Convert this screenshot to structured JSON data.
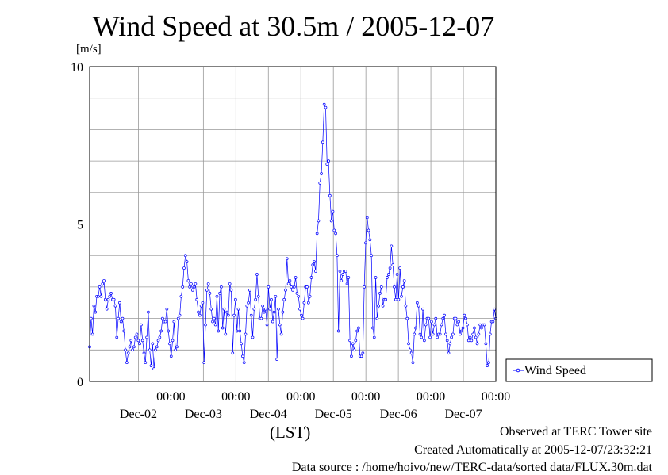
{
  "chart_data": {
    "type": "line",
    "title": "Wind Speed at 30.5m / 2005-12-07",
    "ylabel": "[m/s]",
    "xlabel": "(LST)",
    "ylim": [
      0,
      10
    ],
    "yticks": [
      0,
      5,
      10
    ],
    "grid": true,
    "legend_position": "right",
    "x_ticks": [
      {
        "time": "00:00",
        "date": "Dec-02"
      },
      {
        "time": "00:00",
        "date": "Dec-03"
      },
      {
        "time": "00:00",
        "date": "Dec-04"
      },
      {
        "time": "00:00",
        "date": "Dec-05"
      },
      {
        "time": "00:00",
        "date": "Dec-06"
      },
      {
        "time": "00:00",
        "date": "Dec-07"
      }
    ],
    "x_units": "hours since 2005-12-01 00:00 LST",
    "xlim": [
      18,
      168
    ],
    "series": [
      {
        "name": "Wind Speed",
        "color": "#0000ff",
        "y": [
          1.1,
          2.0,
          1.5,
          2.4,
          2.2,
          2.7,
          2.7,
          3.0,
          2.7,
          3.1,
          3.2,
          2.6,
          2.3,
          2.6,
          2.7,
          2.8,
          2.6,
          2.6,
          2.4,
          1.4,
          2.0,
          2.5,
          1.9,
          2.0,
          1.6,
          1.0,
          0.6,
          0.9,
          1.1,
          1.3,
          1.0,
          1.1,
          1.4,
          1.5,
          1.3,
          1.2,
          1.8,
          1.3,
          0.9,
          0.6,
          1.4,
          2.2,
          1.0,
          0.5,
          1.2,
          0.4,
          1.0,
          1.1,
          1.3,
          1.4,
          1.6,
          2.0,
          1.9,
          1.9,
          2.3,
          1.6,
          1.2,
          0.8,
          1.3,
          1.9,
          1.0,
          1.1,
          2.0,
          2.1,
          2.7,
          3.0,
          3.6,
          4.0,
          3.8,
          3.2,
          3.0,
          3.1,
          2.9,
          3.0,
          3.1,
          2.6,
          2.2,
          2.1,
          2.4,
          2.5,
          0.6,
          1.8,
          2.9,
          3.1,
          2.8,
          2.3,
          1.9,
          2.0,
          1.8,
          2.7,
          1.6,
          2.8,
          3.0,
          1.7,
          2.3,
          1.5,
          2.2,
          2.1,
          3.1,
          2.9,
          0.9,
          2.1,
          2.6,
          1.6,
          2.3,
          1.6,
          1.2,
          0.8,
          0.6,
          1.5,
          2.4,
          2.5,
          2.9,
          2.1,
          1.4,
          2.3,
          2.6,
          3.4,
          2.7,
          2.0,
          2.0,
          2.4,
          2.2,
          2.3,
          1.8,
          3.0,
          2.3,
          2.6,
          1.9,
          2.2,
          2.7,
          0.7,
          2.3,
          1.8,
          1.5,
          2.2,
          2.6,
          2.9,
          3.9,
          3.1,
          3.2,
          3.0,
          2.9,
          3.0,
          3.3,
          2.8,
          2.7,
          2.3,
          2.1,
          2.0,
          2.5,
          3.0,
          3.0,
          2.5,
          2.7,
          3.3,
          3.7,
          3.8,
          3.5,
          4.7,
          5.1,
          6.3,
          6.6,
          7.6,
          8.8,
          8.7,
          6.9,
          7.0,
          5.9,
          5.1,
          5.4,
          4.8,
          4.7,
          4.0,
          1.6,
          3.5,
          3.2,
          3.4,
          3.5,
          3.5,
          3.1,
          3.3,
          1.3,
          0.8,
          1.2,
          1.0,
          1.3,
          1.6,
          1.7,
          0.8,
          0.8,
          0.9,
          3.0,
          4.4,
          5.2,
          4.8,
          4.5,
          4.0,
          1.7,
          1.4,
          3.3,
          2.0,
          2.4,
          2.8,
          3.0,
          2.4,
          2.6,
          2.6,
          3.3,
          3.4,
          3.6,
          4.3,
          3.7,
          3.0,
          2.6,
          3.4,
          2.6,
          3.6,
          2.7,
          3.0,
          3.2,
          2.4,
          2.0,
          1.2,
          1.0,
          0.9,
          0.6,
          1.5,
          1.7,
          2.5,
          2.4,
          1.5,
          1.4,
          2.3,
          1.3,
          1.8,
          2.0,
          2.0,
          1.4,
          1.9,
          1.5,
          1.8,
          2.0,
          1.4,
          1.5,
          1.5,
          1.8,
          2.0,
          2.1,
          1.5,
          1.3,
          0.9,
          1.2,
          1.4,
          1.5,
          2.0,
          2.0,
          1.8,
          1.9,
          1.5,
          1.6,
          1.7,
          2.1,
          2.0,
          1.8,
          1.3,
          1.4,
          1.3,
          1.5,
          1.7,
          1.4,
          1.2,
          1.5,
          1.8,
          1.7,
          1.8,
          1.8,
          1.2,
          0.5,
          0.6,
          1.5,
          1.9,
          1.9,
          2.3,
          2.0
        ]
      }
    ]
  },
  "footer": {
    "line1": "Observed at TERC Tower site",
    "line2": "Created Automatically at 2005-12-07/23:32:21",
    "line3": "Data source : /home/hoivo/new/TERC-data/sorted data/FLUX.30m.dat"
  }
}
